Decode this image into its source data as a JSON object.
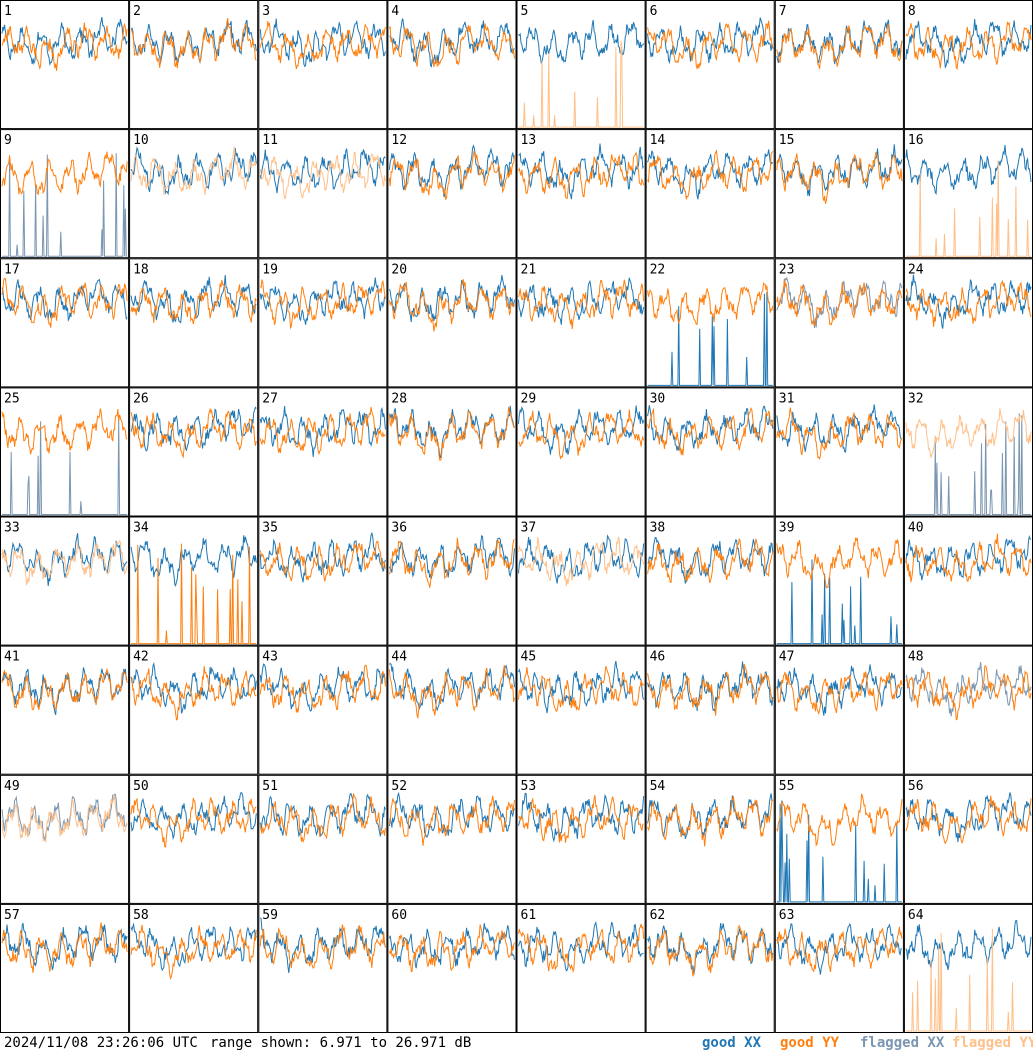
{
  "chart_data": {
    "type": "line",
    "panel_ids": [
      "1",
      "2",
      "3",
      "4",
      "5",
      "6",
      "7",
      "8",
      "9",
      "10",
      "11",
      "12",
      "13",
      "14",
      "15",
      "16",
      "17",
      "18",
      "19",
      "20",
      "21",
      "22",
      "23",
      "24",
      "25",
      "26",
      "27",
      "28",
      "29",
      "30",
      "31",
      "32",
      "33",
      "34",
      "35",
      "36",
      "37",
      "38",
      "39",
      "40",
      "41",
      "42",
      "43",
      "44",
      "45",
      "46",
      "47",
      "48",
      "49",
      "50",
      "51",
      "52",
      "53",
      "54",
      "55",
      "56",
      "57",
      "58",
      "59",
      "60",
      "61",
      "62",
      "63",
      "64"
    ],
    "grid": "8x8",
    "ylim": [
      6.971,
      26.971
    ],
    "unit": "dB",
    "panel_status": {
      "5": {
        "XX": "good",
        "YY": "flagged"
      },
      "9": {
        "XX": "flagged",
        "YY": "good"
      },
      "10": {
        "XX": "good",
        "YY": "flagged"
      },
      "11": {
        "XX": "good",
        "YY": "flagged"
      },
      "16": {
        "XX": "good",
        "YY": "flagged"
      },
      "23": {
        "XX": "flagged",
        "YY": "good"
      },
      "25": {
        "XX": "flagged",
        "YY": "good"
      },
      "32": {
        "XX": "flagged",
        "YY": "flagged"
      },
      "33": {
        "XX": "good",
        "YY": "flagged"
      },
      "37": {
        "XX": "good",
        "YY": "flagged"
      },
      "48": {
        "XX": "flagged",
        "YY": "good"
      },
      "49": {
        "XX": "flagged",
        "YY": "flagged"
      },
      "64": {
        "XX": "good",
        "YY": "flagged"
      }
    },
    "series": [
      {
        "name": "good XX",
        "color": "#1f77b4"
      },
      {
        "name": "good YY",
        "color": "#ff7f0e"
      },
      {
        "name": "flagged XX",
        "color": "#7a96b0"
      },
      {
        "name": "flagged YY",
        "color": "#ffc08a"
      }
    ]
  },
  "footer": {
    "timestamp": "2024/11/08 23:26:06 UTC",
    "range": "range shown: 6.971 to 26.971 dB"
  },
  "legend": {
    "good_xx": "good XX",
    "good_yy": "good YY",
    "flagged_xx": "flagged XX",
    "flagged_yy": "flagged YY"
  },
  "colors": {
    "good_xx": "#1f77b4",
    "good_yy": "#ff7f0e",
    "flagged_xx": "#7a96b0",
    "flagged_yy": "#ffc08a"
  }
}
